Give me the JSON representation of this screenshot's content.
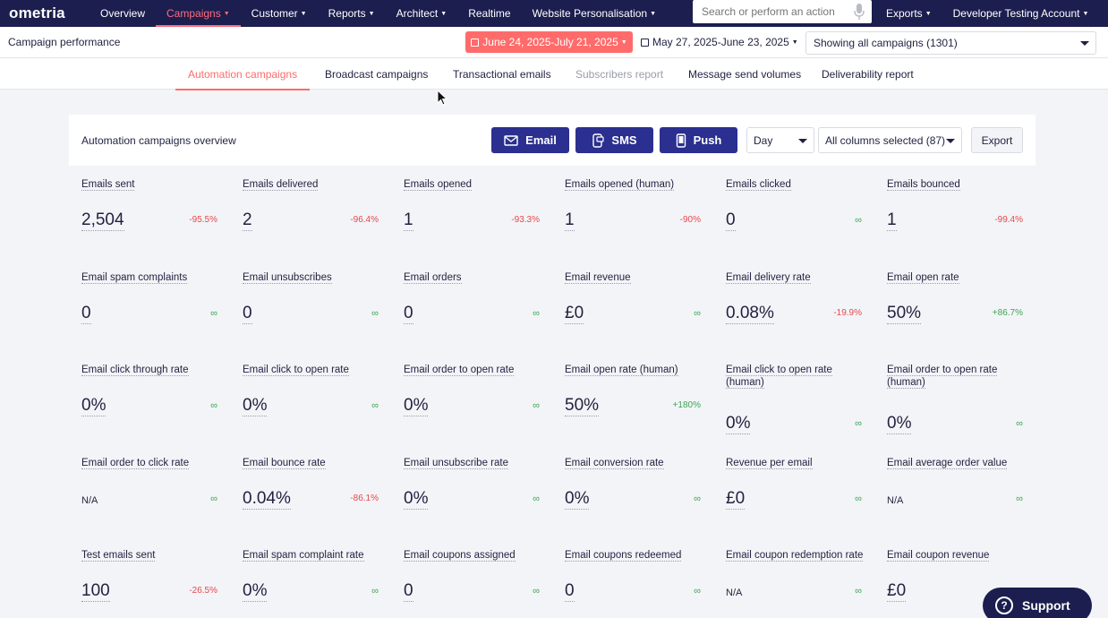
{
  "topnav": {
    "logo": "ometria",
    "items": [
      {
        "label": "Overview",
        "caret": false
      },
      {
        "label": "Campaigns",
        "caret": true,
        "active": true
      },
      {
        "label": "Customer",
        "caret": true
      },
      {
        "label": "Reports",
        "caret": true
      },
      {
        "label": "Architect",
        "caret": true
      },
      {
        "label": "Realtime",
        "caret": false
      },
      {
        "label": "Website Personalisation",
        "caret": true
      }
    ],
    "search_placeholder": "Search or perform an action",
    "right_items": [
      {
        "label": "Exports"
      },
      {
        "label": "Developer Testing Account"
      }
    ],
    "active_color": "#ff6b7d",
    "background": "#1b1e4e"
  },
  "subbar": {
    "title": "Campaign performance",
    "date_primary": "June 24, 2025-July 21, 2025",
    "date_compare": "May 27, 2025-June 23, 2025",
    "campaign_filter": "Showing all campaigns (1301)"
  },
  "tabs": [
    {
      "label": "Automation campaigns",
      "active": true
    },
    {
      "label": "Broadcast campaigns"
    },
    {
      "label": "Transactional emails"
    },
    {
      "label": "Subscribers report",
      "disabled": true
    },
    {
      "label": "Message send volumes"
    },
    {
      "label": "Deliverability report"
    }
  ],
  "card": {
    "title": "Automation campaigns overview",
    "channels": [
      {
        "label": "Email",
        "icon": "envelope-icon"
      },
      {
        "label": "SMS",
        "icon": "sms-phone-icon"
      },
      {
        "label": "Push",
        "icon": "mobile-icon"
      }
    ],
    "granularity": "Day",
    "columns": "All columns selected (87)",
    "export_label": "Export",
    "channel_color": "#2b2f8f"
  },
  "metrics": [
    [
      {
        "label": "Emails sent",
        "value": "2,504",
        "change": "-95.5%",
        "trend": "neg"
      },
      {
        "label": "Emails delivered",
        "value": "2",
        "change": "-96.4%",
        "trend": "neg"
      },
      {
        "label": "Emails opened",
        "value": "1",
        "change": "-93.3%",
        "trend": "neg"
      },
      {
        "label": "Emails opened (human)",
        "value": "1",
        "change": "-90%",
        "trend": "neg"
      },
      {
        "label": "Emails clicked",
        "value": "0",
        "change": "∞",
        "trend": "inf"
      },
      {
        "label": "Emails bounced",
        "value": "1",
        "change": "-99.4%",
        "trend": "neg"
      }
    ],
    [
      {
        "label": "Email spam complaints",
        "value": "0",
        "change": "∞",
        "trend": "inf"
      },
      {
        "label": "Email unsubscribes",
        "value": "0",
        "change": "∞",
        "trend": "inf"
      },
      {
        "label": "Email orders",
        "value": "0",
        "change": "∞",
        "trend": "inf"
      },
      {
        "label": "Email revenue",
        "value": "£0",
        "change": "∞",
        "trend": "inf"
      },
      {
        "label": "Email delivery rate",
        "value": "0.08%",
        "change": "-19.9%",
        "trend": "neg"
      },
      {
        "label": "Email open rate",
        "value": "50%",
        "change": "+86.7%",
        "trend": "pos"
      }
    ],
    [
      {
        "label": "Email click through rate",
        "value": "0%",
        "change": "∞",
        "trend": "inf"
      },
      {
        "label": "Email click to open rate",
        "value": "0%",
        "change": "∞",
        "trend": "inf"
      },
      {
        "label": "Email order to open rate",
        "value": "0%",
        "change": "∞",
        "trend": "inf"
      },
      {
        "label": "Email open rate (human)",
        "value": "50%",
        "change": "+180%",
        "trend": "pos"
      },
      {
        "label": "Email click to open rate (human)",
        "value": "0%",
        "change": "∞",
        "trend": "inf"
      },
      {
        "label": "Email order to open rate (human)",
        "value": "0%",
        "change": "∞",
        "trend": "inf"
      }
    ],
    [
      {
        "label": "Email order to click rate",
        "value": "N/A",
        "change": "∞",
        "trend": "inf"
      },
      {
        "label": "Email bounce rate",
        "value": "0.04%",
        "change": "-86.1%",
        "trend": "neg"
      },
      {
        "label": "Email unsubscribe rate",
        "value": "0%",
        "change": "∞",
        "trend": "inf"
      },
      {
        "label": "Email conversion rate",
        "value": "0%",
        "change": "∞",
        "trend": "inf"
      },
      {
        "label": "Revenue per email",
        "value": "£0",
        "change": "∞",
        "trend": "inf"
      },
      {
        "label": "Email average order value",
        "value": "N/A",
        "change": "∞",
        "trend": "inf"
      }
    ],
    [
      {
        "label": "Test emails sent",
        "value": "100",
        "change": "-26.5%",
        "trend": "neg"
      },
      {
        "label": "Email spam complaint rate",
        "value": "0%",
        "change": "∞",
        "trend": "inf"
      },
      {
        "label": "Email coupons assigned",
        "value": "0",
        "change": "∞",
        "trend": "inf"
      },
      {
        "label": "Email coupons redeemed",
        "value": "0",
        "change": "∞",
        "trend": "inf"
      },
      {
        "label": "Email coupon redemption rate",
        "value": "N/A",
        "change": "∞",
        "trend": "inf"
      },
      {
        "label": "Email coupon revenue",
        "value": "£0",
        "change": "",
        "trend": "inf"
      }
    ]
  ],
  "support": {
    "label": "Support",
    "icon": "question-icon"
  }
}
